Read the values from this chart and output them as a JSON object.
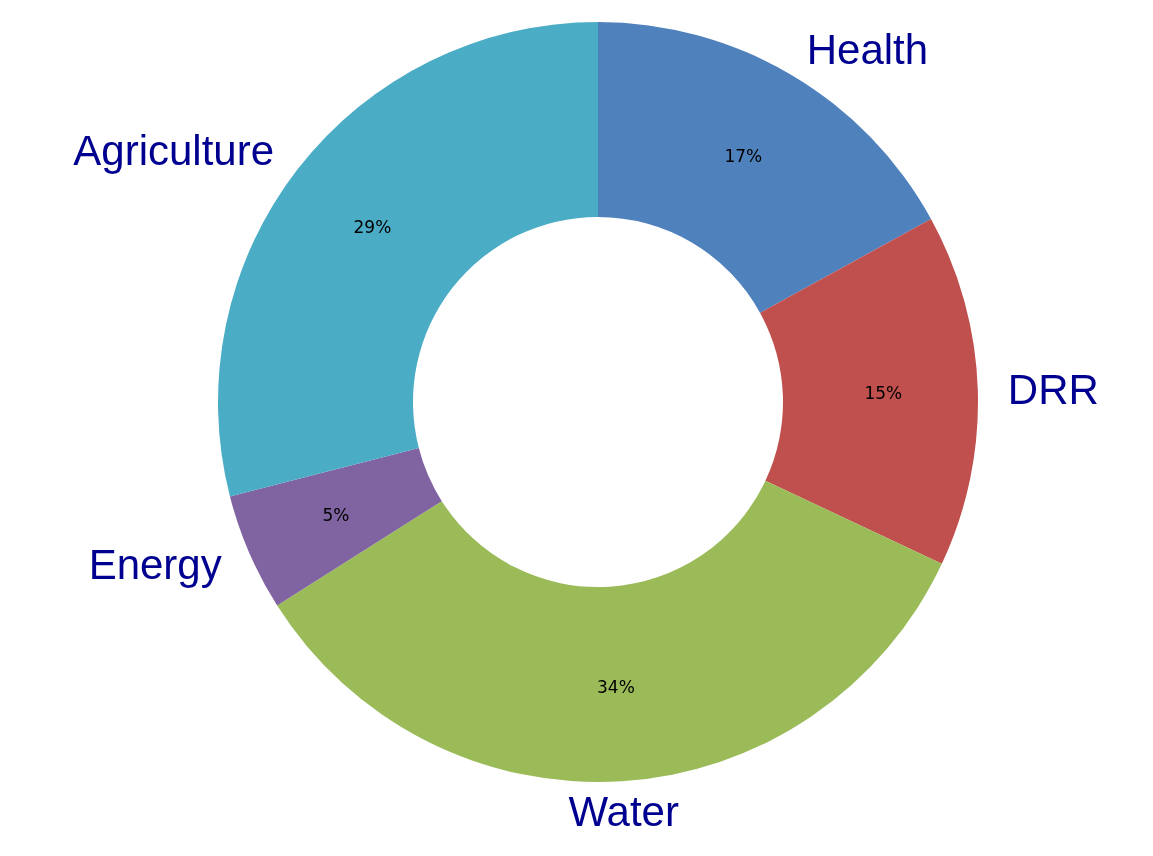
{
  "chart_data": {
    "type": "donut",
    "categories": [
      "Health",
      "DRR",
      "Water",
      "Energy",
      "Agriculture"
    ],
    "values": [
      17,
      15,
      34,
      5,
      29
    ],
    "colors": [
      "#4f81bd",
      "#c0504d",
      "#9bbb59",
      "#8064a2",
      "#4bacc6"
    ],
    "value_labels": [
      "17%",
      "15%",
      "34%",
      "5%",
      "29%"
    ],
    "legend": false
  }
}
